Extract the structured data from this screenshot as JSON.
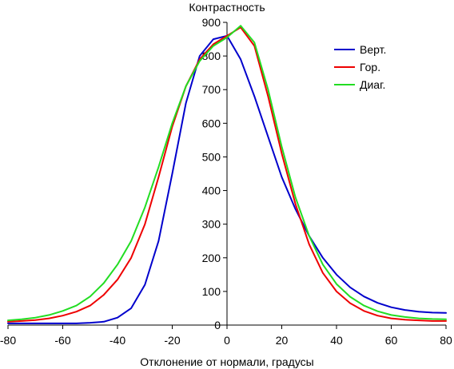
{
  "chart_data": {
    "type": "line",
    "title": "",
    "ylabel": "Контрастность",
    "xlabel": "Отклонение от нормали, градусы",
    "xlim": [
      -80,
      80
    ],
    "ylim": [
      0,
      900
    ],
    "xticks": [
      -80,
      -60,
      -40,
      -20,
      0,
      20,
      40,
      60,
      80
    ],
    "yticks": [
      0,
      100,
      200,
      300,
      400,
      500,
      600,
      700,
      800,
      900
    ],
    "grid": false,
    "legend_position": "top-right",
    "x": [
      -80,
      -75,
      -70,
      -65,
      -60,
      -55,
      -50,
      -45,
      -40,
      -35,
      -30,
      -25,
      -20,
      -15,
      -10,
      -5,
      0,
      5,
      10,
      15,
      20,
      25,
      30,
      35,
      40,
      45,
      50,
      55,
      60,
      65,
      70,
      75,
      80
    ],
    "series": [
      {
        "name": "Верт.",
        "color": "#0000cc",
        "values": [
          5,
          5,
          5,
          5,
          5,
          5,
          7,
          10,
          22,
          50,
          120,
          250,
          450,
          660,
          800,
          850,
          860,
          790,
          680,
          560,
          440,
          345,
          265,
          200,
          150,
          112,
          85,
          66,
          53,
          45,
          40,
          37,
          36
        ]
      },
      {
        "name": "Гор.",
        "color": "#ee0000",
        "values": [
          10,
          12,
          15,
          20,
          28,
          40,
          58,
          90,
          135,
          200,
          300,
          440,
          590,
          710,
          790,
          835,
          860,
          885,
          830,
          680,
          510,
          360,
          240,
          155,
          100,
          65,
          42,
          28,
          20,
          16,
          14,
          12,
          12
        ]
      },
      {
        "name": "Диаг.",
        "color": "#22dd22",
        "values": [
          14,
          17,
          22,
          30,
          42,
          58,
          85,
          125,
          180,
          250,
          350,
          470,
          600,
          710,
          785,
          830,
          855,
          890,
          840,
          700,
          530,
          380,
          265,
          180,
          122,
          84,
          58,
          41,
          30,
          24,
          20,
          18,
          17
        ]
      }
    ]
  }
}
